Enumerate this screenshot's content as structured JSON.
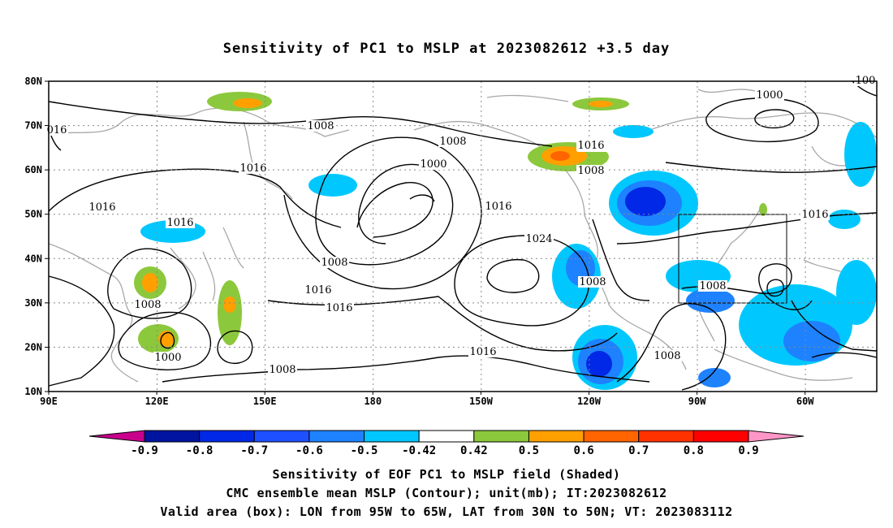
{
  "title": "Sensitivity of PC1 to MSLP at 2023082612 +3.5 day",
  "lat_labels": [
    "80N",
    "70N",
    "60N",
    "50N",
    "40N",
    "30N",
    "20N",
    "10N"
  ],
  "lon_labels": [
    "90E",
    "120E",
    "150E",
    "180",
    "150W",
    "120W",
    "90W",
    "60W"
  ],
  "colorbar": {
    "labels": [
      "-0.9",
      "-0.8",
      "-0.7",
      "-0.6",
      "-0.5",
      "-0.42",
      "0.42",
      "0.5",
      "0.6",
      "0.7",
      "0.8",
      "0.9"
    ],
    "colors": [
      "#c8008c",
      "#0014a0",
      "#0028e6",
      "#1e50ff",
      "#1e82ff",
      "#00c8ff",
      "#ffffff",
      "#8cc83c",
      "#ffa000",
      "#ff6400",
      "#ff3200",
      "#ff0000",
      "#ff96c8"
    ]
  },
  "contour_labels": [
    {
      "text": "1008"
    },
    {
      "text": "1016"
    },
    {
      "text": "1016"
    },
    {
      "text": "1016"
    },
    {
      "text": "1008"
    },
    {
      "text": "1000"
    },
    {
      "text": "1008"
    },
    {
      "text": "1008"
    },
    {
      "text": "1000"
    },
    {
      "text": "1016"
    },
    {
      "text": "1016"
    },
    {
      "text": "1016"
    },
    {
      "text": "1024"
    },
    {
      "text": "1016"
    },
    {
      "text": "1016"
    },
    {
      "text": "1008"
    },
    {
      "text": "1008"
    },
    {
      "text": "1000"
    },
    {
      "text": "1008"
    },
    {
      "text": "1008"
    },
    {
      "text": "1016"
    },
    {
      "text": "1008"
    },
    {
      "text": "1008"
    },
    {
      "text": "016"
    },
    {
      "text": "100"
    }
  ],
  "valid_box": {
    "lon_west": "95W",
    "lon_east": "65W",
    "lat_south": "30N",
    "lat_north": "50N"
  },
  "captions": [
    "Sensitivity of EOF PC1 to MSLP field (Shaded)",
    "CMC ensemble mean MSLP (Contour); unit(mb); IT:2023082612",
    "Valid area (box): LON from 95W to 65W, LAT from 30N to 50N; VT: 2023083112"
  ]
}
